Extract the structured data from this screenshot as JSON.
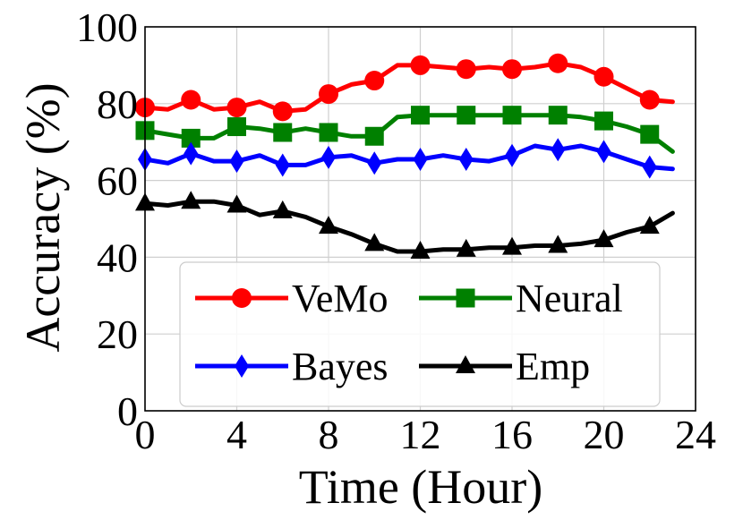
{
  "chart_data": {
    "type": "line",
    "title": "",
    "xlabel": "Time (Hour)",
    "ylabel": "Accuracy (%)",
    "xlim": [
      0,
      24
    ],
    "ylim": [
      0,
      100
    ],
    "xticks": [
      0,
      4,
      8,
      12,
      16,
      20,
      24
    ],
    "yticks": [
      0,
      20,
      40,
      60,
      80,
      100
    ],
    "grid": true,
    "legend_position": "lower-center",
    "x": [
      0,
      1,
      2,
      3,
      4,
      5,
      6,
      7,
      8,
      9,
      10,
      11,
      12,
      13,
      14,
      15,
      16,
      17,
      18,
      19,
      20,
      21,
      22,
      23
    ],
    "series": [
      {
        "name": "VeMo",
        "color": "#ff0000",
        "marker": "circle",
        "values": [
          79,
          78.5,
          81,
          78.5,
          79,
          80.5,
          78,
          78.5,
          82.5,
          85,
          86,
          90,
          90,
          89.5,
          89,
          89.5,
          89,
          89.5,
          90.5,
          89.5,
          87,
          84,
          81,
          80.5
        ]
      },
      {
        "name": "Neural",
        "color": "#008000",
        "marker": "square",
        "values": [
          73,
          72,
          71,
          71,
          74,
          73.5,
          72.5,
          73.5,
          72.5,
          71.5,
          71.5,
          76.5,
          77,
          77,
          77,
          77,
          77,
          77,
          77,
          76.5,
          75.5,
          74,
          72,
          67.5
        ]
      },
      {
        "name": "Bayes",
        "color": "#0000ff",
        "marker": "diamond",
        "values": [
          65.5,
          64.5,
          67,
          65,
          65,
          66.5,
          64,
          64,
          66,
          66.5,
          64.5,
          65.5,
          65.5,
          66.5,
          65.5,
          65,
          66.5,
          69,
          68,
          69,
          67.5,
          65.5,
          63.5,
          63
        ]
      },
      {
        "name": "Emp",
        "color": "#000000",
        "marker": "triangle",
        "values": [
          54,
          53.5,
          54.5,
          54.5,
          53.5,
          51,
          52,
          50.5,
          48,
          46,
          43.5,
          41.5,
          41.5,
          42,
          42,
          42.5,
          42.5,
          43,
          43,
          43.5,
          44.5,
          46.5,
          48,
          51.5
        ]
      }
    ]
  }
}
